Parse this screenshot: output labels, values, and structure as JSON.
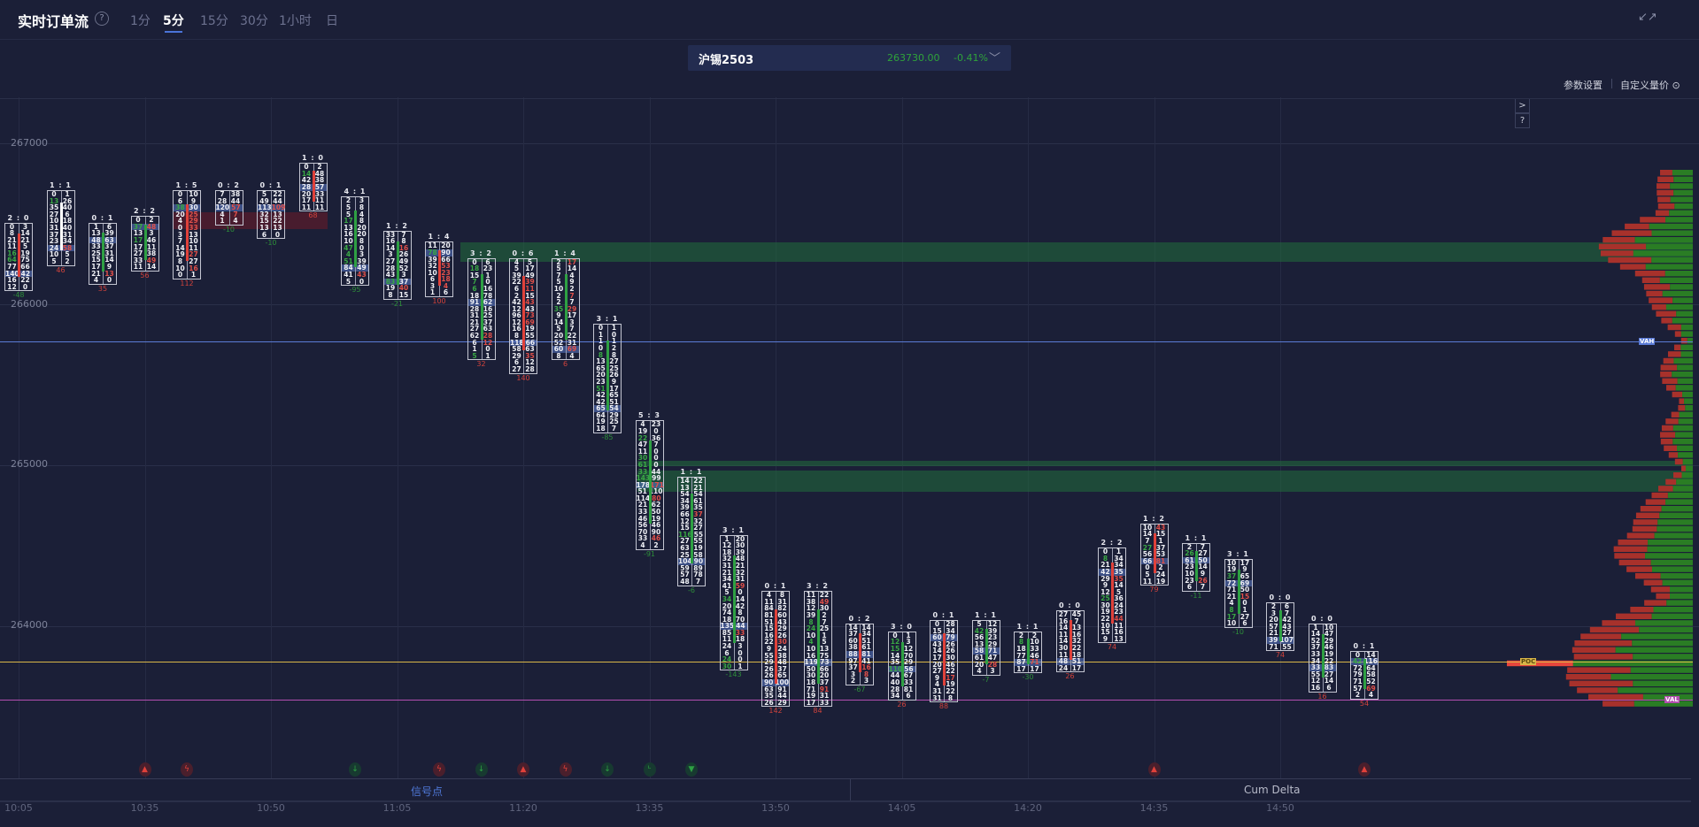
{
  "header": {
    "title": "实时订单流",
    "help_icon": "?",
    "tabs": [
      "1分",
      "5分",
      "15分",
      "30分",
      "1小时",
      "日"
    ],
    "active_tab": "5分",
    "collapse_icon": "↙↗"
  },
  "ticker": {
    "symbol": "沪锡2503",
    "price": "263730.00",
    "change": "-0.41%",
    "chevron": "﹀",
    "color": "#2fa33a"
  },
  "toolbar": {
    "params": "参数设置",
    "custom": "自定义量价 ⊙",
    "expand": ">",
    "help": "?"
  },
  "yaxis": {
    "labels": [
      "267000",
      "266000",
      "265000",
      "264000"
    ]
  },
  "xaxis": {
    "labels": [
      "10:05",
      "10:35",
      "10:50",
      "11:05",
      "11:20",
      "13:35",
      "13:50",
      "14:05",
      "14:20",
      "14:35",
      "14:50"
    ]
  },
  "levels": {
    "vah": {
      "label": "VAH",
      "price": 265765,
      "color": "#5b7bd6"
    },
    "poc": {
      "label": "POC",
      "price": 263780,
      "color": "#d9b648"
    },
    "val": {
      "label": "VAL",
      "price": 263540,
      "color": "#b34fb0"
    }
  },
  "bottom_tabs": {
    "signals": "信号点",
    "cum_delta": "Cum Delta"
  },
  "colors": {
    "up": "#2ea043",
    "down": "#e0413a",
    "background": "#1b1f37"
  },
  "candles": [
    {
      "time": "10:05",
      "high": 266500,
      "ratio": "2 : 0",
      "bar": "red",
      "delta": -48,
      "bid": [
        0,
        8,
        21,
        11,
        16,
        64,
        77,
        140,
        16,
        12
      ],
      "ask": [
        3,
        14,
        21,
        5,
        19,
        75,
        66,
        42,
        22,
        0
      ]
    },
    {
      "time": "10:10",
      "high": 266700,
      "ratio": "1 : 1",
      "bar": "white",
      "delta": 46,
      "bid": [
        0,
        13,
        35,
        27,
        10,
        31,
        37,
        23,
        24,
        10,
        5
      ],
      "ask": [
        1,
        26,
        40,
        6,
        18,
        40,
        31,
        34,
        58,
        5,
        2
      ]
    },
    {
      "time": "10:30",
      "high": 266500,
      "ratio": "0 : 1",
      "bar": "green",
      "delta": 35,
      "bid": [
        1,
        13,
        48,
        33,
        25,
        15,
        17,
        21,
        4
      ],
      "ask": [
        6,
        39,
        63,
        37,
        31,
        14,
        9,
        13,
        0
      ]
    },
    {
      "time": "10:35",
      "high": 266540,
      "ratio": "2 : 2",
      "bar": "green",
      "delta": 56,
      "bid": [
        0,
        37,
        13,
        17,
        17,
        27,
        33,
        11
      ],
      "ask": [
        2,
        48,
        3,
        46,
        11,
        38,
        49,
        14
      ]
    },
    {
      "time": "10:40",
      "high": 266700,
      "ratio": "1 : 5",
      "bar": "red",
      "delta": 112,
      "bid": [
        0,
        6,
        38,
        20,
        4,
        0,
        3,
        7,
        14,
        19,
        8,
        10,
        0
      ],
      "ask": [
        10,
        9,
        30,
        25,
        29,
        33,
        13,
        10,
        11,
        27,
        27,
        16,
        1
      ]
    },
    {
      "time": "10:45",
      "high": 266700,
      "ratio": "0 : 2",
      "bar": "none",
      "delta": -10,
      "bid": [
        7,
        28,
        120,
        4,
        1
      ],
      "ask": [
        38,
        44,
        57,
        7,
        4
      ]
    },
    {
      "time": "10:50",
      "high": 266700,
      "ratio": "0 : 1",
      "bar": "none",
      "delta": -10,
      "bid": [
        5,
        49,
        113,
        32,
        15,
        13,
        6
      ],
      "ask": [
        22,
        44,
        109,
        13,
        22,
        13,
        0
      ]
    },
    {
      "time": "10:55",
      "high": 266870,
      "ratio": "1 : 0",
      "bar": "red",
      "delta": 68,
      "bid": [
        0,
        14,
        42,
        28,
        20,
        17,
        11
      ],
      "ask": [
        2,
        48,
        38,
        57,
        33,
        11,
        11
      ]
    },
    {
      "time": "11:00",
      "high": 266660,
      "ratio": "4 : 1",
      "bar": "green",
      "delta": -95,
      "bid": [
        2,
        5,
        5,
        17,
        13,
        16,
        10,
        47,
        4,
        51,
        84,
        41,
        5
      ],
      "ask": [
        3,
        8,
        4,
        8,
        20,
        20,
        8,
        0,
        3,
        39,
        49,
        43,
        0
      ]
    },
    {
      "time": "11:05",
      "high": 266450,
      "ratio": "1 : 2",
      "bar": "green",
      "delta": -21,
      "bid": [
        33,
        16,
        14,
        3,
        27,
        28,
        43,
        83,
        19,
        8
      ],
      "ask": [
        7,
        8,
        16,
        26,
        49,
        52,
        3,
        37,
        40,
        15
      ]
    },
    {
      "time": "11:10",
      "high": 266380,
      "ratio": "1 : 4",
      "bar": "red",
      "delta": 100,
      "bid": [
        11,
        78,
        39,
        32,
        10,
        6,
        3,
        1
      ],
      "ask": [
        20,
        90,
        66,
        53,
        23,
        18,
        4,
        6
      ]
    },
    {
      "time": "11:15",
      "high": 266280,
      "ratio": "3 : 2",
      "bar": "green",
      "delta": 32,
      "bid": [
        0,
        18,
        15,
        7,
        6,
        18,
        91,
        28,
        31,
        21,
        27,
        62,
        6,
        1,
        5
      ],
      "ask": [
        6,
        23,
        1,
        0,
        16,
        78,
        62,
        16,
        25,
        37,
        63,
        28,
        12,
        0,
        1
      ]
    },
    {
      "time": "11:20",
      "high": 266280,
      "ratio": "0 : 6",
      "bar": "red",
      "delta": 140,
      "bid": [
        4,
        5,
        39,
        22,
        6,
        2,
        42,
        12,
        96,
        12,
        16,
        8,
        118,
        58,
        29,
        6,
        27
      ],
      "ask": [
        5,
        17,
        49,
        39,
        11,
        15,
        43,
        43,
        73,
        69,
        19,
        55,
        66,
        63,
        35,
        12,
        28
      ]
    },
    {
      "time": "11:25",
      "high": 266280,
      "ratio": "1 : 4",
      "bar": "green",
      "delta": 6,
      "bid": [
        2,
        5,
        7,
        5,
        10,
        2,
        2,
        35,
        9,
        14,
        5,
        20,
        52,
        60,
        8
      ],
      "ask": [
        17,
        14,
        4,
        9,
        2,
        7,
        7,
        29,
        17,
        3,
        7,
        22,
        31,
        69,
        4
      ]
    },
    {
      "time": "13:30",
      "high": 265870,
      "ratio": "3 : 1",
      "bar": "green",
      "delta": -85,
      "bid": [
        0,
        1,
        1,
        0,
        8,
        13,
        65,
        20,
        23,
        51,
        42,
        42,
        65,
        64,
        19,
        18
      ],
      "ask": [
        1,
        0,
        1,
        2,
        8,
        27,
        25,
        26,
        9,
        17,
        65,
        51,
        54,
        29,
        25,
        7
      ]
    },
    {
      "time": "13:35",
      "high": 265270,
      "ratio": "5 : 3",
      "bar": "green",
      "delta": -91,
      "bid": [
        4,
        19,
        22,
        47,
        11,
        30,
        61,
        33,
        143,
        178,
        51,
        114,
        21,
        33,
        46,
        56,
        70,
        33,
        4
      ],
      "ask": [
        23,
        0,
        36,
        7,
        0,
        0,
        0,
        44,
        99,
        171,
        110,
        80,
        62,
        50,
        19,
        46,
        90,
        46,
        2
      ]
    },
    {
      "time": "13:40",
      "high": 264920,
      "ratio": "1 : 1",
      "bar": "green",
      "delta": -6,
      "bid": [
        14,
        13,
        54,
        34,
        39,
        66,
        12,
        15,
        116,
        27,
        63,
        25,
        104,
        59,
        57,
        48
      ],
      "ask": [
        22,
        21,
        54,
        61,
        35,
        37,
        32,
        27,
        55,
        55,
        19,
        58,
        90,
        89,
        78,
        7
      ]
    },
    {
      "time": "13:45",
      "high": 264560,
      "ratio": "3 : 1",
      "bar": "green",
      "delta": -143,
      "bid": [
        1,
        12,
        18,
        32,
        31,
        21,
        34,
        41,
        5,
        34,
        20,
        74,
        18,
        135,
        85,
        11,
        24,
        6,
        24,
        30
      ],
      "ask": [
        20,
        30,
        39,
        48,
        21,
        32,
        31,
        59,
        0,
        14,
        42,
        8,
        70,
        44,
        33,
        18,
        3,
        0,
        0,
        1
      ]
    },
    {
      "time": "13:50",
      "high": 264210,
      "ratio": "0 : 1",
      "bar": "red",
      "delta": 142,
      "bid": [
        4,
        11,
        84,
        81,
        51,
        15,
        16,
        22,
        9,
        55,
        29,
        26,
        26,
        90,
        63,
        35,
        26
      ],
      "ask": [
        8,
        31,
        82,
        60,
        43,
        29,
        26,
        30,
        24,
        38,
        48,
        37,
        65,
        100,
        91,
        44,
        29
      ]
    },
    {
      "time": "13:55",
      "high": 264210,
      "ratio": "3 : 2",
      "bar": "green",
      "delta": 84,
      "bid": [
        11,
        38,
        12,
        39,
        8,
        24,
        10,
        4,
        10,
        16,
        119,
        50,
        30,
        18,
        71,
        19,
        17
      ],
      "ask": [
        22,
        49,
        30,
        2,
        7,
        25,
        1,
        5,
        13,
        75,
        73,
        66,
        20,
        37,
        91,
        31,
        33
      ]
    },
    {
      "time": "14:00",
      "high": 264010,
      "ratio": "0 : 2",
      "bar": "red",
      "delta": -67,
      "bid": [
        14,
        37,
        60,
        38,
        88,
        97,
        37,
        3,
        2
      ],
      "ask": [
        14,
        34,
        51,
        61,
        81,
        41,
        16,
        8,
        3
      ]
    },
    {
      "time": "14:05",
      "high": 263960,
      "ratio": "3 : 0",
      "bar": "green",
      "delta": 26,
      "bid": [
        0,
        12,
        15,
        14,
        35,
        110,
        44,
        40,
        28,
        34
      ],
      "ask": [
        1,
        3,
        12,
        70,
        29,
        56,
        67,
        33,
        81,
        6
      ]
    },
    {
      "time": "14:10",
      "high": 264030,
      "ratio": "0 : 1",
      "bar": "red",
      "delta": 88,
      "bid": [
        0,
        15,
        60,
        43,
        14,
        17,
        20,
        27,
        9,
        4,
        31,
        31
      ],
      "ask": [
        28,
        34,
        79,
        26,
        26,
        30,
        46,
        22,
        17,
        19,
        22,
        8
      ]
    },
    {
      "time": "14:15",
      "high": 264030,
      "ratio": "1 : 1",
      "bar": "green",
      "delta": -7,
      "bid": [
        5,
        42,
        56,
        13,
        58,
        61,
        20,
        4
      ],
      "ask": [
        12,
        39,
        23,
        29,
        71,
        47,
        28,
        3
      ]
    },
    {
      "time": "14:20",
      "high": 263960,
      "ratio": "1 : 1",
      "bar": "green",
      "delta": -30,
      "bid": [
        2,
        8,
        18,
        77,
        87,
        17
      ],
      "ask": [
        2,
        10,
        33,
        46,
        71,
        17
      ]
    },
    {
      "time": "14:25",
      "high": 264090,
      "ratio": "0 : 0",
      "bar": "red",
      "delta": 26,
      "bid": [
        27,
        16,
        14,
        11,
        14,
        30,
        11,
        48,
        24
      ],
      "ask": [
        45,
        7,
        13,
        16,
        32,
        22,
        18,
        51,
        17
      ]
    },
    {
      "time": "14:30",
      "high": 264480,
      "ratio": "2 : 2",
      "bar": "red",
      "delta": 74,
      "bid": [
        0,
        8,
        21,
        42,
        29,
        9,
        12,
        25,
        30,
        19,
        22,
        10,
        15,
        9
      ],
      "ask": [
        1,
        34,
        34,
        35,
        35,
        14,
        5,
        36,
        24,
        23,
        44,
        11,
        16,
        13
      ]
    },
    {
      "time": "14:35",
      "high": 264630,
      "ratio": "1 : 2",
      "bar": "red",
      "delta": 79,
      "bid": [
        10,
        14,
        7,
        27,
        56,
        66,
        0,
        5,
        11
      ],
      "ask": [
        43,
        15,
        1,
        37,
        53,
        81,
        2,
        24,
        19
      ]
    },
    {
      "time": "14:40",
      "high": 264510,
      "ratio": "1 : 1",
      "bar": "green",
      "delta": -11,
      "bid": [
        2,
        26,
        61,
        23,
        10,
        23,
        6
      ],
      "ask": [
        7,
        27,
        50,
        14,
        9,
        26,
        7
      ]
    },
    {
      "time": "14:45",
      "high": 264410,
      "ratio": "3 : 1",
      "bar": "green",
      "delta": -10,
      "bid": [
        10,
        19,
        37,
        72,
        71,
        21,
        4,
        8,
        17,
        10
      ],
      "ask": [
        17,
        9,
        65,
        69,
        50,
        15,
        0,
        1,
        27,
        6
      ]
    },
    {
      "time": "14:50",
      "high": 264140,
      "ratio": "0 : 0",
      "bar": "green",
      "delta": 74,
      "bid": [
        2,
        3,
        20,
        57,
        21,
        39,
        71
      ],
      "ask": [
        6,
        7,
        42,
        43,
        27,
        107,
        55
      ]
    },
    {
      "time": "14:55",
      "high": 264010,
      "ratio": "0 : 0",
      "bar": "green",
      "delta": 16,
      "bid": [
        1,
        14,
        52,
        37,
        33,
        34,
        33,
        55,
        12,
        16
      ],
      "ask": [
        10,
        47,
        29,
        46,
        19,
        22,
        83,
        27,
        14,
        6
      ]
    },
    {
      "time": "15:00",
      "high": 263840,
      "ratio": "0 : 1",
      "bar": "green",
      "delta": 54,
      "bid": [
        0,
        42,
        72,
        79,
        71,
        57,
        2
      ],
      "ask": [
        14,
        116,
        64,
        58,
        52,
        69,
        4
      ]
    }
  ],
  "signals": [
    {
      "time": "10:35",
      "type": "up-triangle",
      "color": "red"
    },
    {
      "time": "10:40",
      "type": "bolt",
      "color": "red"
    },
    {
      "time": "11:00",
      "type": "down-arrow",
      "color": "green"
    },
    {
      "time": "11:10",
      "type": "bolt",
      "color": "red"
    },
    {
      "time": "11:15",
      "type": "down-arrow",
      "color": "green"
    },
    {
      "time": "11:20",
      "type": "up-triangle",
      "color": "red"
    },
    {
      "time": "11:25",
      "type": "bolt",
      "color": "red"
    },
    {
      "time": "13:30",
      "type": "down-arrow",
      "color": "green"
    },
    {
      "time": "13:35",
      "type": "hook",
      "color": "green"
    },
    {
      "time": "13:40",
      "type": "down-triangle",
      "color": "green"
    },
    {
      "time": "14:35",
      "type": "up-triangle",
      "color": "red"
    },
    {
      "time": "15:00",
      "type": "up-triangle",
      "color": "red"
    }
  ]
}
